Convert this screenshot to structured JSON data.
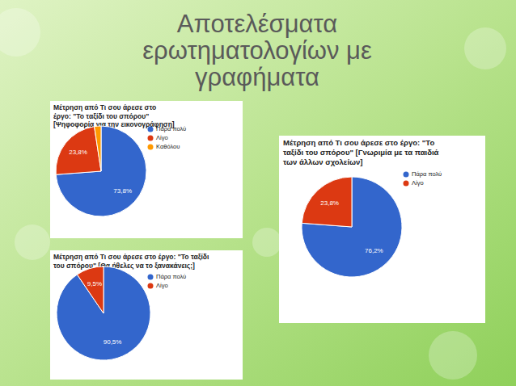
{
  "slide_title": "Αποτελέσματα ερωτηματολογίων με γραφήματα",
  "chart_data": [
    {
      "type": "pie",
      "title": "Μέτρηση από Τι σου άρεσε στο έργο: \"Το ταξίδι του σπόρου\" [Ψηφοφορία για την εικονογράφηση]",
      "categories": [
        "Πάρα πολύ",
        "Λίγο",
        "Καθόλου"
      ],
      "values": [
        73.8,
        23.8,
        2.4
      ],
      "value_labels": [
        "73,8%",
        "23,8%",
        null
      ],
      "colors": [
        "#3366cc",
        "#dc3912",
        "#ff9900"
      ],
      "data_labels": true,
      "legend": "right"
    },
    {
      "type": "pie",
      "title": "Μέτρηση από Τι σου άρεσε στο έργο: \"Το ταξίδι του σπόρου\" [Γνωριμία με τα παιδιά των άλλων σχολείων]",
      "categories": [
        "Πάρα πολύ",
        "Λίγο"
      ],
      "values": [
        76.2,
        23.8
      ],
      "value_labels": [
        "76,2%",
        "23,8%"
      ],
      "colors": [
        "#3366cc",
        "#dc3912"
      ],
      "data_labels": true,
      "legend": "right"
    },
    {
      "type": "pie",
      "title": "Μέτρηση από Τι σου άρεσε στο έργο: \"Το ταξίδι του σπόρου\" [Θα ήθελες να το ξανακάνεις;]",
      "categories": [
        "Πάρα πολύ",
        "Λίγο"
      ],
      "values": [
        90.5,
        9.5
      ],
      "value_labels": [
        "90,5%",
        "9,5%"
      ],
      "colors": [
        "#3366cc",
        "#dc3912"
      ],
      "data_labels": true,
      "legend": "right"
    }
  ]
}
